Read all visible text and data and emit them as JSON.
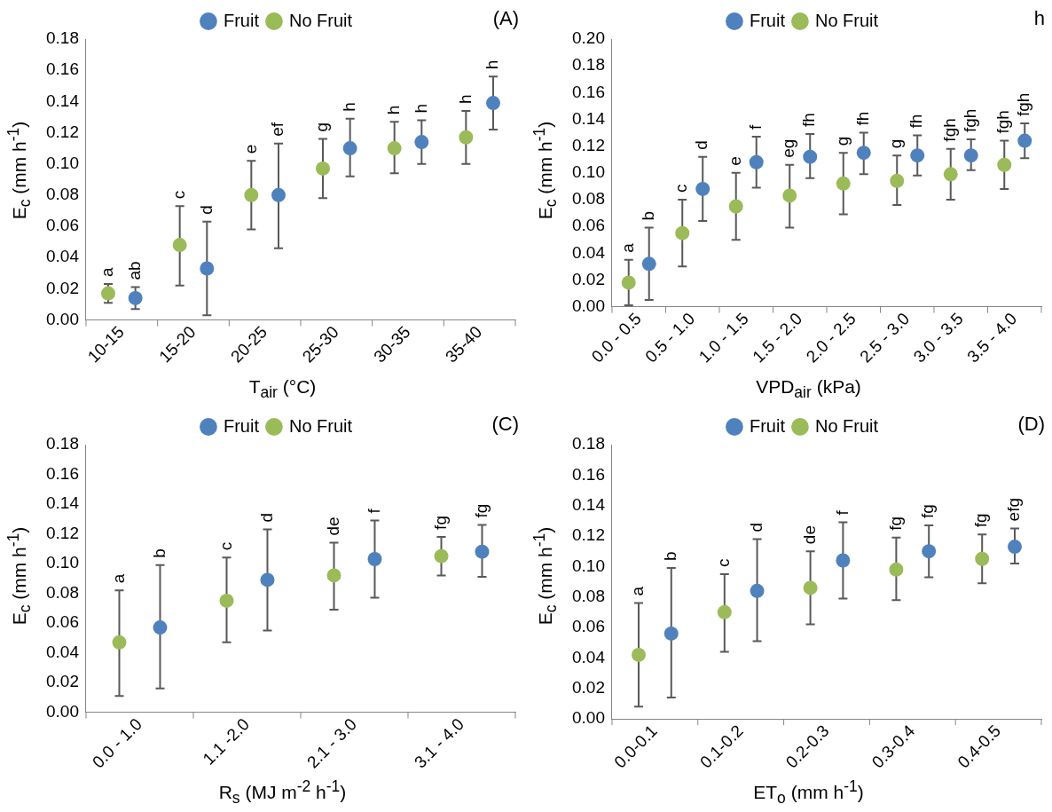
{
  "chart_data": [
    {
      "type": "scatter",
      "categories": [
        "10-15",
        "15-20",
        "20-25",
        "25-30",
        "30-35",
        "35-40"
      ],
      "ylabel": "E$_{c}$ (mm h$^{-1}$)",
      "xlabel": "T$_{air}$ (°C)",
      "ylim": [
        0,
        0.18
      ],
      "yticks": [
        {
          "value": 0,
          "label": "0.00"
        },
        {
          "value": 0.02,
          "label": "0.02"
        },
        {
          "value": 0.04,
          "label": "0.04"
        },
        {
          "value": 0.06,
          "label": "0.06"
        },
        {
          "value": 0.08,
          "label": "0.08"
        },
        {
          "value": 0.1,
          "label": "0.10"
        },
        {
          "value": 0.12,
          "label": "0.12"
        },
        {
          "value": 0.14,
          "label": "0.14"
        },
        {
          "value": 0.16,
          "label": "0.16"
        },
        {
          "value": 0.18,
          "label": "0.18"
        }
      ],
      "legend": "top",
      "marker": "circle",
      "annotations": [
        "(A)",
        "a",
        "ab",
        "c",
        "d",
        "e",
        "ef",
        "g",
        "h",
        "h",
        "h",
        "h",
        "h"
      ],
      "series": [
        {
          "name": "Fruit",
          "color": "#4f81bd",
          "values": [
            0.014,
            0.033,
            0.08,
            0.11,
            0.114,
            0.139
          ],
          "errors": [
            [
              0.007,
              0.021
            ],
            [
              0.003,
              0.063
            ],
            [
              0.046,
              0.113
            ],
            [
              0.092,
              0.129
            ],
            [
              0.1,
              0.128
            ],
            [
              0.122,
              0.156
            ]
          ]
        },
        {
          "name": "No Fruit",
          "color": "#9bbb59",
          "values": [
            0.017,
            0.048,
            0.08,
            0.097,
            0.11,
            0.117
          ],
          "errors": [
            [
              0.011,
              0.023
            ],
            [
              0.022,
              0.073
            ],
            [
              0.058,
              0.102
            ],
            [
              0.078,
              0.116
            ],
            [
              0.094,
              0.127
            ],
            [
              0.1,
              0.134
            ]
          ]
        }
      ]
    },
    {
      "type": "scatter",
      "categories": [
        "0.0 - 0.5",
        "0.5 - 1.0",
        "1.0 - 1.5",
        "1.5 - 2.0",
        "2.0 - 2.5",
        "2.5 - 3.0",
        "3.0 - 3.5",
        "3.5 - 4.0"
      ],
      "ylabel": "E$_{c}$ (mm h$^{-1}$)",
      "xlabel": "VPD$_{air}$ (kPa)",
      "ylim": [
        0,
        0.2
      ],
      "yticks": [
        {
          "value": 0,
          "label": "0.00"
        },
        {
          "value": 0.02,
          "label": "0.02"
        },
        {
          "value": 0.04,
          "label": "0.04"
        },
        {
          "value": 0.06,
          "label": "0.06"
        },
        {
          "value": 0.08,
          "label": "0.08"
        },
        {
          "value": 0.1,
          "label": "0.10"
        },
        {
          "value": 0.12,
          "label": "0.12"
        },
        {
          "value": 0.14,
          "label": "0.14"
        },
        {
          "value": 0.16,
          "label": "0.16"
        },
        {
          "value": 0.18,
          "label": "0.18"
        },
        {
          "value": 0.2,
          "label": "0.20"
        }
      ],
      "legend": "top",
      "marker": "circle",
      "annotations": [
        "h",
        "a",
        "b",
        "c",
        "d",
        "e",
        "f",
        "eg",
        "fh",
        "g",
        "fh",
        "g",
        "fh",
        "fgh",
        "fgh",
        "fgh",
        "fgh"
      ],
      "series": [
        {
          "name": "Fruit",
          "color": "#4f81bd",
          "values": [
            0.032,
            0.088,
            0.108,
            0.112,
            0.115,
            0.113,
            0.113,
            0.124
          ],
          "errors": [
            [
              0.005,
              0.059
            ],
            [
              0.064,
              0.112
            ],
            [
              0.089,
              0.127
            ],
            [
              0.096,
              0.129
            ],
            [
              0.099,
              0.13
            ],
            [
              0.098,
              0.128
            ],
            [
              0.102,
              0.125
            ],
            [
              0.111,
              0.137
            ]
          ]
        },
        {
          "name": "No Fruit",
          "color": "#9bbb59",
          "values": [
            0.018,
            0.055,
            0.075,
            0.083,
            0.092,
            0.094,
            0.099,
            0.106
          ],
          "errors": [
            [
              0.001,
              0.035
            ],
            [
              0.03,
              0.08
            ],
            [
              0.05,
              0.1
            ],
            [
              0.059,
              0.106
            ],
            [
              0.069,
              0.115
            ],
            [
              0.076,
              0.113
            ],
            [
              0.08,
              0.118
            ],
            [
              0.088,
              0.124
            ]
          ]
        }
      ]
    },
    {
      "type": "scatter",
      "categories": [
        "0.0 - 1.0",
        "1.1 -2.0",
        "2.1 - 3.0",
        "3.1 - 4.0"
      ],
      "ylabel": "E$_{c}$ (mm h$^{-1}$)",
      "xlabel": "R$_{s}$ (MJ m$^{-2}$ h$^{-1}$)",
      "ylim": [
        0,
        0.18
      ],
      "yticks": [
        {
          "value": 0,
          "label": "0.00"
        },
        {
          "value": 0.02,
          "label": "0.02"
        },
        {
          "value": 0.04,
          "label": "0.04"
        },
        {
          "value": 0.06,
          "label": "0.06"
        },
        {
          "value": 0.08,
          "label": "0.08"
        },
        {
          "value": 0.1,
          "label": "0.10"
        },
        {
          "value": 0.12,
          "label": "0.12"
        },
        {
          "value": 0.14,
          "label": "0.14"
        },
        {
          "value": 0.16,
          "label": "0.16"
        },
        {
          "value": 0.18,
          "label": "0.18"
        }
      ],
      "legend": "top",
      "marker": "circle",
      "annotations": [
        "(C)",
        "a",
        "b",
        "c",
        "d",
        "de",
        "f",
        "fg",
        "fg"
      ],
      "series": [
        {
          "name": "Fruit",
          "color": "#4f81bd",
          "values": [
            0.057,
            0.089,
            0.103,
            0.108
          ],
          "errors": [
            [
              0.016,
              0.099
            ],
            [
              0.055,
              0.123
            ],
            [
              0.077,
              0.129
            ],
            [
              0.091,
              0.126
            ]
          ]
        },
        {
          "name": "No Fruit",
          "color": "#9bbb59",
          "values": [
            0.047,
            0.075,
            0.092,
            0.105
          ],
          "errors": [
            [
              0.011,
              0.082
            ],
            [
              0.047,
              0.104
            ],
            [
              0.069,
              0.114
            ],
            [
              0.092,
              0.118
            ]
          ]
        }
      ]
    },
    {
      "type": "scatter",
      "categories": [
        "0.0-0.1",
        "0.1-0.2",
        "0.2-0.3",
        "0.3-0.4",
        "0.4-0.5"
      ],
      "ylabel": "E$_{c}$ (mm h$^{-1}$)",
      "xlabel": "ET$_{o}$ (mm h$^{-1}$)",
      "ylim": [
        0,
        0.18
      ],
      "yticks": [
        {
          "value": 0,
          "label": "0.00"
        },
        {
          "value": 0.02,
          "label": "0.02"
        },
        {
          "value": 0.04,
          "label": "0.04"
        },
        {
          "value": 0.06,
          "label": "0.06"
        },
        {
          "value": 0.08,
          "label": "0.08"
        },
        {
          "value": 0.1,
          "label": "0.10"
        },
        {
          "value": 0.12,
          "label": "0.12"
        },
        {
          "value": 0.14,
          "label": "0.14"
        },
        {
          "value": 0.16,
          "label": "0.16"
        },
        {
          "value": 0.18,
          "label": "0.18"
        }
      ],
      "legend": "top",
      "marker": "circle",
      "annotations": [
        "(D)",
        "a",
        "b",
        "c",
        "d",
        "de",
        "f",
        "fg",
        "fg",
        "fg",
        "efg"
      ],
      "series": [
        {
          "name": "Fruit",
          "color": "#4f81bd",
          "values": [
            0.056,
            0.084,
            0.104,
            0.11,
            0.113
          ],
          "errors": [
            [
              0.014,
              0.099
            ],
            [
              0.051,
              0.118
            ],
            [
              0.079,
              0.129
            ],
            [
              0.093,
              0.127
            ],
            [
              0.102,
              0.125
            ]
          ]
        },
        {
          "name": "No Fruit",
          "color": "#9bbb59",
          "values": [
            0.042,
            0.07,
            0.086,
            0.098,
            0.105
          ],
          "errors": [
            [
              0.008,
              0.076
            ],
            [
              0.044,
              0.095
            ],
            [
              0.062,
              0.11
            ],
            [
              0.078,
              0.119
            ],
            [
              0.089,
              0.121
            ]
          ]
        }
      ]
    }
  ]
}
